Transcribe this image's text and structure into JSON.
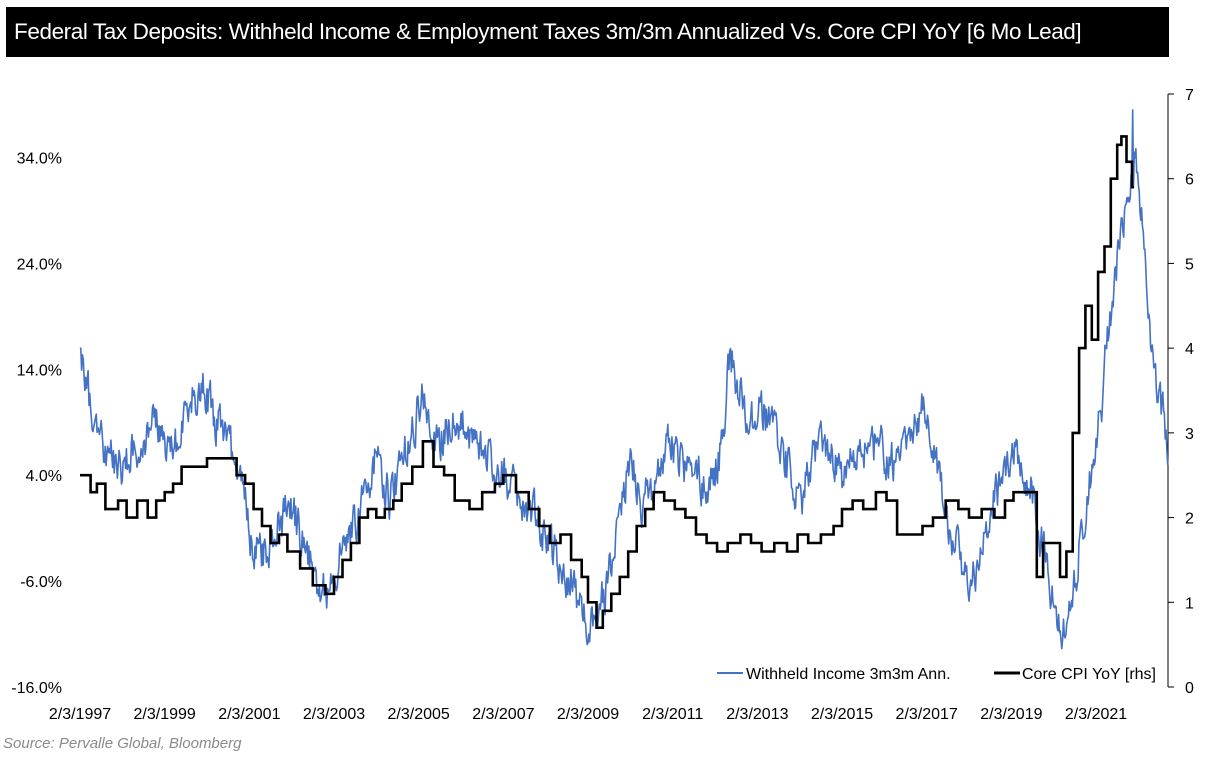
{
  "page": {
    "title": "Federal Tax Deposits: Withheld Income & Employment Taxes 3m/3m Annualized Vs. Core CPI YoY [6 Mo Lead]",
    "source": "Source: Pervalle Global, Bloomberg"
  },
  "chart_data": {
    "type": "line",
    "title": "Federal Tax Deposits: Withheld Income & Employment Taxes 3m/3m Annualized Vs. Core CPI YoY [6 Mo Lead]",
    "x_tick_labels": [
      "2/3/1997",
      "2/3/1999",
      "2/3/2001",
      "2/3/2003",
      "2/3/2005",
      "2/3/2007",
      "2/3/2009",
      "2/3/2011",
      "2/3/2013",
      "2/3/2015",
      "2/3/2017",
      "2/3/2019",
      "2/3/2021"
    ],
    "x_tick_years": [
      1997,
      1999,
      2001,
      2003,
      2005,
      2007,
      2009,
      2011,
      2013,
      2015,
      2017,
      2019,
      2021
    ],
    "xlim": [
      1997,
      2022.7
    ],
    "left_axis": {
      "ticks": [
        34.0,
        24.0,
        14.0,
        4.0,
        -6.0,
        -16.0
      ],
      "tick_labels": [
        "34.0%",
        "24.0%",
        "14.0%",
        "4.0%",
        "-6.0%",
        "-16.0%"
      ],
      "range": [
        -16,
        40
      ]
    },
    "right_axis": {
      "ticks": [
        7,
        6,
        5,
        4,
        3,
        2,
        1,
        0
      ],
      "tick_labels": [
        "7",
        "6",
        "5",
        "4",
        "3",
        "2",
        "1",
        "0"
      ],
      "range": [
        0,
        7
      ],
      "label": "rhs"
    },
    "grid": false,
    "legend_position": "bottom-right",
    "series": [
      {
        "name": "Withheld Income 3m3m Ann.",
        "axis": "left",
        "color": "#4472C4",
        "noise_amplitude": 3.2,
        "anchors": [
          [
            1997.0,
            15.5
          ],
          [
            1997.15,
            13
          ],
          [
            1997.3,
            9
          ],
          [
            1997.6,
            6
          ],
          [
            1998.0,
            5
          ],
          [
            1998.4,
            7
          ],
          [
            1998.8,
            9
          ],
          [
            1999.2,
            6
          ],
          [
            1999.6,
            11
          ],
          [
            1999.9,
            13
          ],
          [
            2000.2,
            9
          ],
          [
            2000.5,
            7
          ],
          [
            2000.8,
            5
          ],
          [
            2001.0,
            -2
          ],
          [
            2001.3,
            -4
          ],
          [
            2001.6,
            -1
          ],
          [
            2002.0,
            1
          ],
          [
            2002.3,
            -3
          ],
          [
            2002.5,
            -5
          ],
          [
            2002.8,
            -7
          ],
          [
            2003.2,
            -3
          ],
          [
            2003.6,
            0
          ],
          [
            2004.0,
            6
          ],
          [
            2004.3,
            2
          ],
          [
            2004.6,
            5
          ],
          [
            2004.9,
            9
          ],
          [
            2005.1,
            12
          ],
          [
            2005.4,
            7
          ],
          [
            2005.8,
            9
          ],
          [
            2006.2,
            8
          ],
          [
            2006.6,
            6
          ],
          [
            2007.0,
            4
          ],
          [
            2007.3,
            2
          ],
          [
            2007.7,
            1
          ],
          [
            2008.0,
            -2
          ],
          [
            2008.3,
            -4
          ],
          [
            2008.6,
            -6
          ],
          [
            2008.9,
            -9
          ],
          [
            2009.1,
            -10
          ],
          [
            2009.4,
            -7
          ],
          [
            2009.8,
            1
          ],
          [
            2010.0,
            6
          ],
          [
            2010.3,
            1
          ],
          [
            2010.6,
            4
          ],
          [
            2010.9,
            7
          ],
          [
            2011.2,
            5
          ],
          [
            2011.5,
            4
          ],
          [
            2011.8,
            3
          ],
          [
            2012.0,
            4
          ],
          [
            2012.2,
            8
          ],
          [
            2012.35,
            16
          ],
          [
            2012.5,
            13
          ],
          [
            2012.8,
            9
          ],
          [
            2013.1,
            10
          ],
          [
            2013.5,
            7
          ],
          [
            2013.9,
            3
          ],
          [
            2014.1,
            2
          ],
          [
            2014.3,
            6
          ],
          [
            2014.6,
            7
          ],
          [
            2015.0,
            4
          ],
          [
            2015.4,
            6
          ],
          [
            2015.8,
            7
          ],
          [
            2016.2,
            5
          ],
          [
            2016.6,
            7
          ],
          [
            2016.95,
            11
          ],
          [
            2017.2,
            6
          ],
          [
            2017.5,
            0
          ],
          [
            2017.7,
            -3
          ],
          [
            2018.0,
            -6
          ],
          [
            2018.3,
            -4
          ],
          [
            2018.6,
            2
          ],
          [
            2018.9,
            5
          ],
          [
            2019.2,
            6
          ],
          [
            2019.5,
            2
          ],
          [
            2019.8,
            -4
          ],
          [
            2020.0,
            -8
          ],
          [
            2020.2,
            -11
          ],
          [
            2020.5,
            -6
          ],
          [
            2020.8,
            3
          ],
          [
            2021.1,
            9
          ],
          [
            2021.3,
            18
          ],
          [
            2021.5,
            24
          ],
          [
            2021.7,
            30
          ],
          [
            2021.9,
            34
          ],
          [
            2022.05,
            30
          ],
          [
            2022.2,
            22
          ],
          [
            2022.35,
            14
          ],
          [
            2022.55,
            10
          ],
          [
            2022.7,
            7
          ]
        ],
        "shocks": [
          [
            2021.87,
            38.5
          ],
          [
            2022.12,
            27
          ],
          [
            2022.7,
            5
          ]
        ]
      },
      {
        "name": "Core CPI YoY [rhs]",
        "axis": "right",
        "color": "#000000",
        "steps": [
          [
            1997.0,
            2.5
          ],
          [
            1997.25,
            2.3
          ],
          [
            1997.4,
            2.4
          ],
          [
            1997.6,
            2.1
          ],
          [
            1997.9,
            2.2
          ],
          [
            1998.1,
            2.0
          ],
          [
            1998.35,
            2.2
          ],
          [
            1998.6,
            2.0
          ],
          [
            1998.8,
            2.2
          ],
          [
            1999.0,
            2.3
          ],
          [
            1999.2,
            2.4
          ],
          [
            1999.4,
            2.6
          ],
          [
            1999.7,
            2.6
          ],
          [
            2000.0,
            2.7
          ],
          [
            2000.4,
            2.7
          ],
          [
            2000.7,
            2.5
          ],
          [
            2000.9,
            2.4
          ],
          [
            2001.1,
            2.1
          ],
          [
            2001.3,
            1.9
          ],
          [
            2001.5,
            1.7
          ],
          [
            2001.7,
            1.8
          ],
          [
            2001.9,
            1.6
          ],
          [
            2002.2,
            1.4
          ],
          [
            2002.5,
            1.2
          ],
          [
            2002.8,
            1.1
          ],
          [
            2003.0,
            1.3
          ],
          [
            2003.2,
            1.5
          ],
          [
            2003.4,
            1.7
          ],
          [
            2003.6,
            2.0
          ],
          [
            2003.8,
            2.1
          ],
          [
            2004.0,
            2.0
          ],
          [
            2004.2,
            2.1
          ],
          [
            2004.4,
            2.2
          ],
          [
            2004.6,
            2.4
          ],
          [
            2004.85,
            2.6
          ],
          [
            2005.1,
            2.9
          ],
          [
            2005.35,
            2.6
          ],
          [
            2005.6,
            2.5
          ],
          [
            2005.85,
            2.2
          ],
          [
            2006.2,
            2.1
          ],
          [
            2006.5,
            2.3
          ],
          [
            2006.8,
            2.4
          ],
          [
            2007.0,
            2.5
          ],
          [
            2007.3,
            2.3
          ],
          [
            2007.6,
            2.1
          ],
          [
            2007.85,
            1.9
          ],
          [
            2008.1,
            1.7
          ],
          [
            2008.35,
            1.8
          ],
          [
            2008.6,
            1.5
          ],
          [
            2008.85,
            1.3
          ],
          [
            2009.0,
            1.0
          ],
          [
            2009.2,
            0.7
          ],
          [
            2009.35,
            0.9
          ],
          [
            2009.55,
            1.1
          ],
          [
            2009.75,
            1.3
          ],
          [
            2009.95,
            1.6
          ],
          [
            2010.15,
            1.9
          ],
          [
            2010.35,
            2.1
          ],
          [
            2010.55,
            2.3
          ],
          [
            2010.8,
            2.2
          ],
          [
            2011.05,
            2.1
          ],
          [
            2011.3,
            2.0
          ],
          [
            2011.55,
            1.8
          ],
          [
            2011.8,
            1.7
          ],
          [
            2012.05,
            1.6
          ],
          [
            2012.3,
            1.7
          ],
          [
            2012.6,
            1.8
          ],
          [
            2012.85,
            1.7
          ],
          [
            2013.1,
            1.6
          ],
          [
            2013.4,
            1.7
          ],
          [
            2013.7,
            1.6
          ],
          [
            2013.95,
            1.8
          ],
          [
            2014.2,
            1.7
          ],
          [
            2014.5,
            1.8
          ],
          [
            2014.8,
            1.9
          ],
          [
            2015.0,
            2.1
          ],
          [
            2015.25,
            2.2
          ],
          [
            2015.5,
            2.1
          ],
          [
            2015.8,
            2.3
          ],
          [
            2016.05,
            2.2
          ],
          [
            2016.3,
            1.8
          ],
          [
            2016.6,
            1.8
          ],
          [
            2016.9,
            1.9
          ],
          [
            2017.15,
            2.0
          ],
          [
            2017.45,
            2.2
          ],
          [
            2017.75,
            2.1
          ],
          [
            2018.0,
            2.0
          ],
          [
            2018.3,
            2.1
          ],
          [
            2018.6,
            2.0
          ],
          [
            2018.85,
            2.2
          ],
          [
            2019.05,
            2.3
          ],
          [
            2019.3,
            2.3
          ],
          [
            2019.6,
            1.3
          ],
          [
            2019.75,
            1.7
          ],
          [
            2019.95,
            1.7
          ],
          [
            2020.15,
            1.3
          ],
          [
            2020.3,
            1.6
          ],
          [
            2020.45,
            3.0
          ],
          [
            2020.6,
            4.0
          ],
          [
            2020.75,
            4.5
          ],
          [
            2020.9,
            4.1
          ],
          [
            2021.05,
            4.9
          ],
          [
            2021.2,
            5.2
          ],
          [
            2021.35,
            6.0
          ],
          [
            2021.5,
            6.4
          ],
          [
            2021.6,
            6.5
          ],
          [
            2021.72,
            6.2
          ],
          [
            2021.85,
            5.9
          ]
        ]
      }
    ]
  }
}
